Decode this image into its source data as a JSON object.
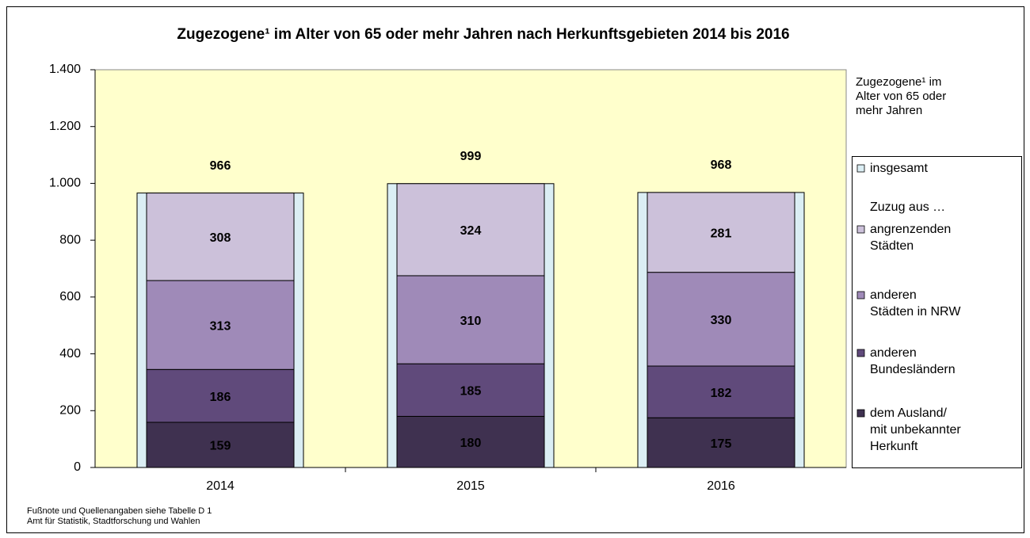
{
  "chart_data": {
    "type": "stacked_bar",
    "title": "Zugezogene¹ im Alter von 65 oder mehr Jahren nach Herkunftsgebieten 2014 bis 2016",
    "legend_title": "Zugezogene¹ im Alter von 65 oder mehr Jahren",
    "legend_subheading": "Zuzug aus …",
    "categories": [
      "2014",
      "2015",
      "2016"
    ],
    "total": {
      "name": "insgesamt",
      "color": "#dbeef4",
      "values": [
        966,
        999,
        968
      ]
    },
    "series": [
      {
        "name": "dem Ausland/ mit unbekannter Herkunft",
        "color": "#3f3150",
        "label_color": "#ffffff",
        "values": [
          159,
          180,
          175
        ]
      },
      {
        "name": "anderen Bundesländern",
        "color": "#604a7b",
        "label_color": "#ffffff",
        "values": [
          186,
          185,
          182
        ]
      },
      {
        "name": "anderen Städten in NRW",
        "color": "#9f8ab8",
        "label_color": "#000000",
        "values": [
          313,
          310,
          330
        ]
      },
      {
        "name": "angrenzenden Städten",
        "color": "#ccc1da",
        "label_color": "#000000",
        "values": [
          308,
          324,
          281
        ]
      }
    ],
    "ylim": [
      0,
      1400
    ],
    "yticks": [
      0,
      200,
      400,
      600,
      800,
      {
        "value": 1000,
        "label": "1.000"
      },
      {
        "value": 1200,
        "label": "1.200"
      },
      {
        "value": 1400,
        "label": "1.400"
      }
    ],
    "plot_background": "#ffffcc",
    "footnotes": [
      "Fußnote und Quellenangaben siehe Tabelle D 1",
      "Amt für Statistik, Stadtforschung und Wahlen"
    ]
  }
}
